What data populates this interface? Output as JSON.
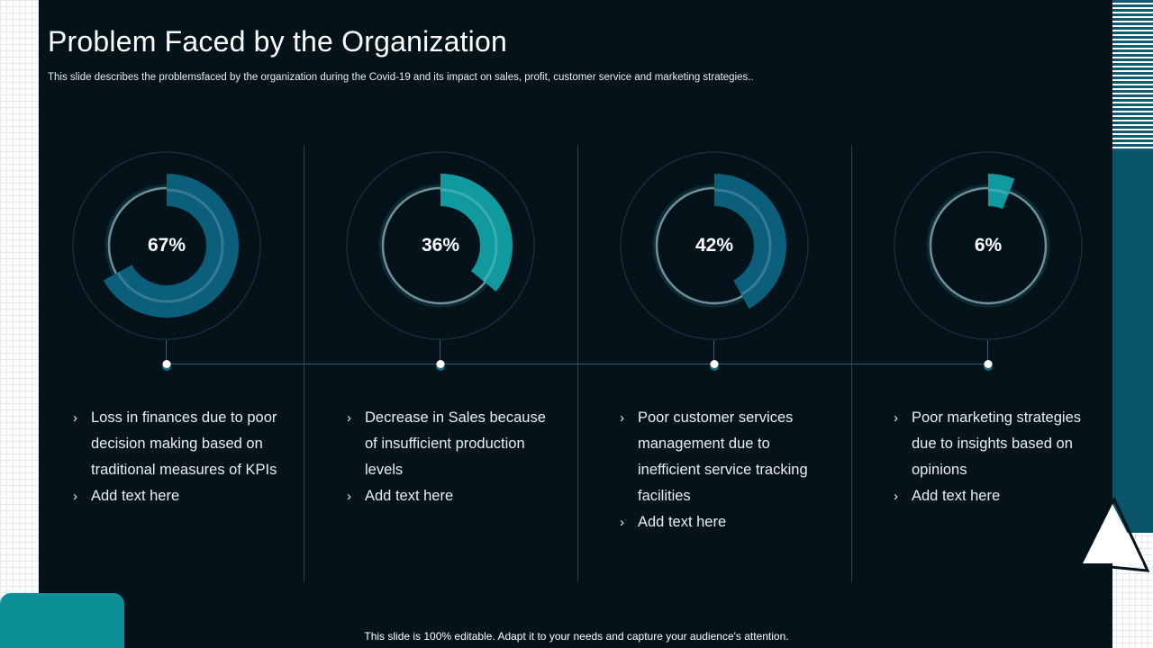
{
  "title": "Problem Faced by the Organization",
  "subtitle": "This slide describes the problemsfaced by the organization during the Covid-19 and its impact on sales, profit, customer service and marketing strategies..",
  "columns": [
    {
      "percent_label": "67%",
      "percent": 67,
      "arc_color": "#0b5f7a",
      "bullets": [
        "Loss in finances due to poor decision making based on traditional measures of KPIs",
        "Add text here"
      ]
    },
    {
      "percent_label": "36%",
      "percent": 36,
      "arc_color": "#109aa0",
      "bullets": [
        "Decrease in Sales because of insufficient production levels",
        "Add text here"
      ]
    },
    {
      "percent_label": "42%",
      "percent": 42,
      "arc_color": "#0b5f7a",
      "bullets": [
        "Poor customer services management due to inefficient service tracking facilities",
        "Add text here"
      ]
    },
    {
      "percent_label": "6%",
      "percent": 6,
      "arc_color": "#109aa0",
      "bullets": [
        "Poor marketing strategies due to insights based on opinions",
        "Add text here"
      ]
    }
  ],
  "footer": "This slide is 100% editable. Adapt it to your needs and capture your audience's attention.",
  "colors": {
    "background": "#04121a",
    "accent_teal": "#109aa0",
    "accent_blue": "#0b5f7a",
    "text": "#ffffff"
  },
  "icons": {
    "bullet": "chevron-right-icon"
  }
}
